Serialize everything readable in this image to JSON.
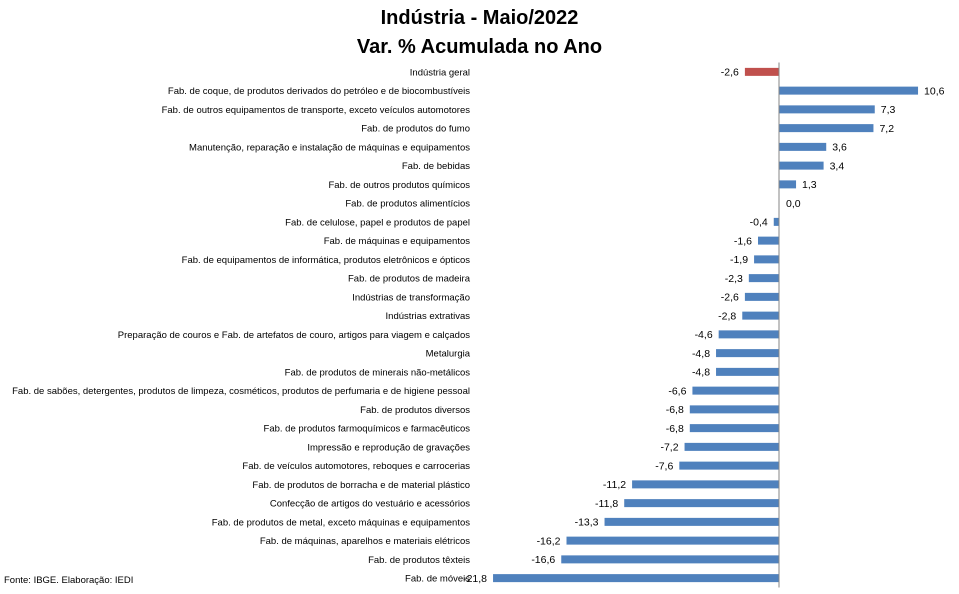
{
  "chart_data": {
    "type": "bar",
    "orientation": "horizontal",
    "title": "Indústria - Maio/2022",
    "subtitle": "Var. % Acumulada no Ano",
    "categories": [
      "Indústria geral",
      "Fab. de coque, de produtos derivados do petróleo e de biocombustíveis",
      "Fab. de outros equipamentos de transporte, exceto veículos automotores",
      "Fab. de produtos do fumo",
      "Manutenção, reparação e instalação de máquinas e equipamentos",
      "Fab. de bebidas",
      "Fab. de outros produtos químicos",
      "Fab. de produtos alimentícios",
      "Fab. de celulose, papel e produtos de papel",
      "Fab. de máquinas e equipamentos",
      "Fab. de equipamentos de informática, produtos eletrônicos e ópticos",
      "Fab. de produtos de madeira",
      "Indústrias de transformação",
      "Indústrias extrativas",
      "Preparação de couros e Fab. de artefatos de couro, artigos para viagem e calçados",
      "Metalurgia",
      "Fab. de produtos de minerais não-metálicos",
      "Fab. de sabões, detergentes, produtos de limpeza, cosméticos, produtos de perfumaria e de higiene pessoal",
      "Fab. de produtos diversos",
      "Fab. de produtos farmoquímicos e farmacêuticos",
      "Impressão e reprodução de gravações",
      "Fab. de veículos automotores, reboques e carrocerias",
      "Fab. de produtos de borracha e de material plástico",
      "Confecção de artigos do vestuário e acessórios",
      "Fab. de produtos de metal, exceto máquinas e equipamentos",
      "Fab. de máquinas, aparelhos e materiais elétricos",
      "Fab. de produtos têxteis",
      "Fab. de móveis"
    ],
    "values": [
      -2.6,
      10.6,
      7.3,
      7.2,
      3.6,
      3.4,
      1.3,
      0.0,
      -0.4,
      -1.6,
      -1.9,
      -2.3,
      -2.6,
      -2.8,
      -4.6,
      -4.8,
      -4.8,
      -6.6,
      -6.8,
      -6.8,
      -7.2,
      -7.6,
      -11.2,
      -11.8,
      -13.3,
      -16.2,
      -16.6,
      -21.8
    ],
    "value_labels": [
      "-2,6",
      "10,6",
      "7,3",
      "7,2",
      "3,6",
      "3,4",
      "1,3",
      "0,0",
      "-0,4",
      "-1,6",
      "-1,9",
      "-2,3",
      "-2,6",
      "-2,8",
      "-4,6",
      "-4,8",
      "-4,8",
      "-6,6",
      "-6,8",
      "-6,8",
      "-7,2",
      "-7,6",
      "-11,2",
      "-11,8",
      "-13,3",
      "-16,2",
      "-16,6",
      "-21,8"
    ],
    "highlight_index": 0,
    "colors": {
      "default": "#4f81bd",
      "highlight": "#c0504d",
      "axis": "#868686"
    },
    "xlim": [
      -21.8,
      10.6
    ],
    "grid": false,
    "legend": "none"
  },
  "footer": {
    "source": "Fonte: IBGE. Elaboração: IEDI"
  }
}
